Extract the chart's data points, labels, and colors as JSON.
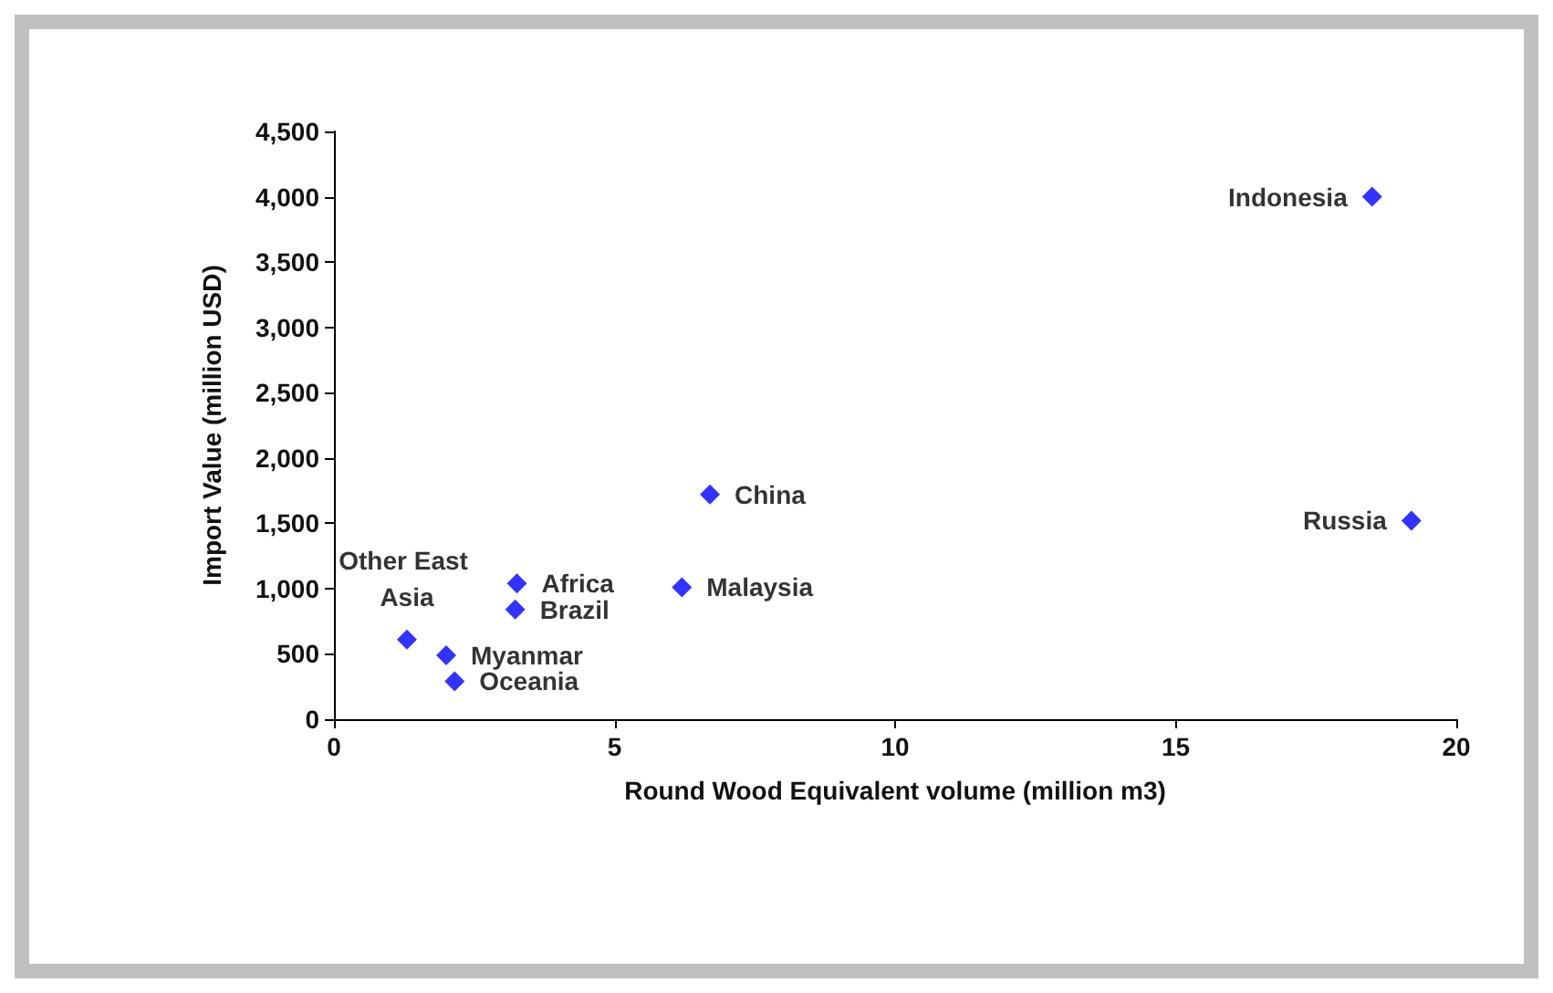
{
  "chart_data": {
    "type": "scatter",
    "xlabel": "Round Wood Equivalent volume (million m3)",
    "ylabel": "Import Value (million USD)",
    "x": [
      18.5,
      19.2,
      6.7,
      6.2,
      3.26,
      3.23,
      1.3,
      2.0,
      2.15
    ],
    "series": [
      {
        "color": "#0000ff",
        "values": [
          4000,
          1520,
          1720,
          1010,
          1040,
          840,
          610,
          490,
          290
        ]
      }
    ],
    "annotations": [
      {
        "text": "Indonesia",
        "x": 18.5,
        "y": 4000
      },
      {
        "text": "Russia",
        "x": 19.2,
        "y": 1520
      },
      {
        "text": "China",
        "x": 6.7,
        "y": 1720
      },
      {
        "text": "Malaysia",
        "x": 6.2,
        "y": 1010
      },
      {
        "text": "Africa",
        "x": 3.26,
        "y": 1040
      },
      {
        "text": "Brazil",
        "x": 3.23,
        "y": 840
      },
      {
        "text": "Other East Asia",
        "x": 1.3,
        "y": 610
      },
      {
        "text": "Myanmar",
        "x": 2.0,
        "y": 490
      },
      {
        "text": "Oceania",
        "x": 2.15,
        "y": 290
      }
    ],
    "xlim": [
      0,
      20
    ],
    "xticks": [
      0,
      5,
      10,
      15,
      20
    ],
    "ylim": [
      0,
      4500
    ],
    "yticks": [
      0,
      500,
      {
        "value": 1000,
        "label": "1,000"
      },
      {
        "value": 1500,
        "label": "1,500"
      },
      {
        "value": 2000,
        "label": "2,000"
      },
      {
        "value": 2500,
        "label": "2,500"
      },
      {
        "value": 3000,
        "label": "3,000"
      },
      {
        "value": 3500,
        "label": "3,500"
      },
      {
        "value": 4000,
        "label": "4,000"
      },
      {
        "value": 4500,
        "label": "4,500"
      }
    ],
    "marker": "diamond",
    "grid": false
  }
}
